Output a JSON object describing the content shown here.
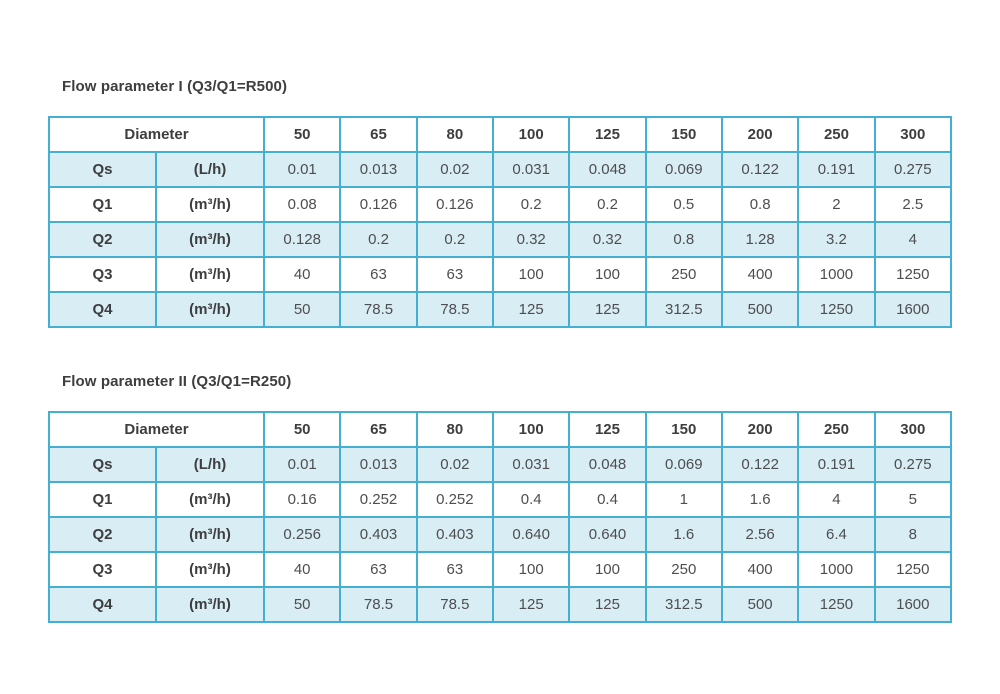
{
  "page": {
    "background": "#ffffff"
  },
  "colors": {
    "table_border": "#45aed3",
    "row_shade": "#d9edf4",
    "heading_text": "#3e3e40",
    "value_text": "#4d4e50"
  },
  "tables": [
    {
      "title": "Flow parameter I (Q3/Q1=R500)",
      "header": {
        "diameter_label": "Diameter",
        "sizes": [
          "50",
          "65",
          "80",
          "100",
          "125",
          "150",
          "200",
          "250",
          "300"
        ]
      },
      "rows": [
        {
          "param": "Qs",
          "unit": "(L/h)",
          "shaded": true,
          "values": [
            "0.01",
            "0.013",
            "0.02",
            "0.031",
            "0.048",
            "0.069",
            "0.122",
            "0.191",
            "0.275"
          ]
        },
        {
          "param": "Q1",
          "unit": "(m³/h)",
          "shaded": false,
          "values": [
            "0.08",
            "0.126",
            "0.126",
            "0.2",
            "0.2",
            "0.5",
            "0.8",
            "2",
            "2.5"
          ]
        },
        {
          "param": "Q2",
          "unit": "(m³/h)",
          "shaded": true,
          "values": [
            "0.128",
            "0.2",
            "0.2",
            "0.32",
            "0.32",
            "0.8",
            "1.28",
            "3.2",
            "4"
          ]
        },
        {
          "param": "Q3",
          "unit": "(m³/h)",
          "shaded": false,
          "values": [
            "40",
            "63",
            "63",
            "100",
            "100",
            "250",
            "400",
            "1000",
            "1250"
          ]
        },
        {
          "param": "Q4",
          "unit": "(m³/h)",
          "shaded": true,
          "values": [
            "50",
            "78.5",
            "78.5",
            "125",
            "125",
            "312.5",
            "500",
            "1250",
            "1600"
          ]
        }
      ]
    },
    {
      "title": "Flow parameter II (Q3/Q1=R250)",
      "header": {
        "diameter_label": "Diameter",
        "sizes": [
          "50",
          "65",
          "80",
          "100",
          "125",
          "150",
          "200",
          "250",
          "300"
        ]
      },
      "rows": [
        {
          "param": "Qs",
          "unit": "(L/h)",
          "shaded": true,
          "values": [
            "0.01",
            "0.013",
            "0.02",
            "0.031",
            "0.048",
            "0.069",
            "0.122",
            "0.191",
            "0.275"
          ]
        },
        {
          "param": "Q1",
          "unit": "(m³/h)",
          "shaded": false,
          "values": [
            "0.16",
            "0.252",
            "0.252",
            "0.4",
            "0.4",
            "1",
            "1.6",
            "4",
            "5"
          ]
        },
        {
          "param": "Q2",
          "unit": "(m³/h)",
          "shaded": true,
          "values": [
            "0.256",
            "0.403",
            "0.403",
            "0.640",
            "0.640",
            "1.6",
            "2.56",
            "6.4",
            "8"
          ]
        },
        {
          "param": "Q3",
          "unit": "(m³/h)",
          "shaded": false,
          "values": [
            "40",
            "63",
            "63",
            "100",
            "100",
            "250",
            "400",
            "1000",
            "1250"
          ]
        },
        {
          "param": "Q4",
          "unit": "(m³/h)",
          "shaded": true,
          "values": [
            "50",
            "78.5",
            "78.5",
            "125",
            "125",
            "312.5",
            "500",
            "1250",
            "1600"
          ]
        }
      ]
    }
  ]
}
